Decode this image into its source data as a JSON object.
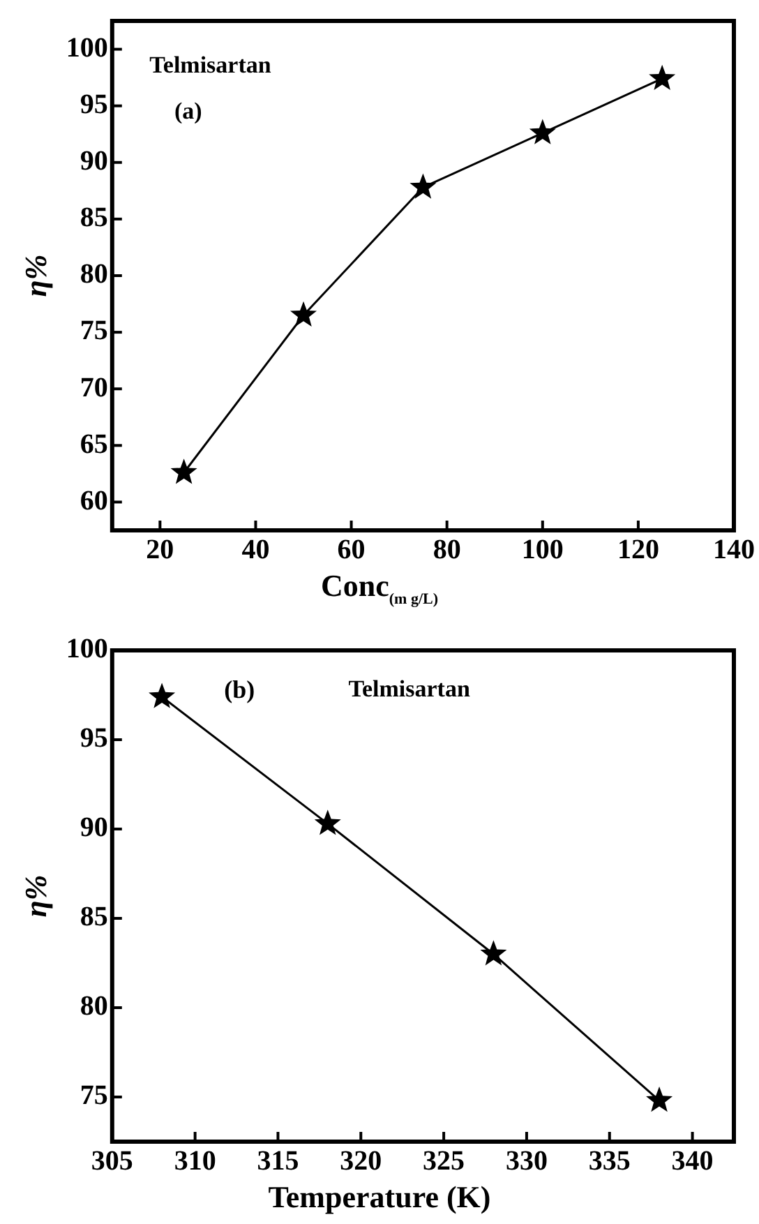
{
  "chart_data": [
    {
      "type": "line",
      "xlabel": "Conc$_{(m g/L)}$",
      "ylabel": "η%",
      "annotations": [
        "Telmisartan",
        "(a)"
      ],
      "x": [
        25,
        50,
        75,
        100,
        125
      ],
      "series": [
        {
          "color": "#000000",
          "values": [
            62.6,
            76.5,
            87.8,
            92.6,
            97.4
          ]
        }
      ],
      "xlim": [
        10,
        140
      ],
      "xticks": [
        20,
        40,
        60,
        80,
        100,
        120,
        140
      ],
      "ylim": [
        57.5,
        102.5
      ],
      "yticks": [
        60,
        65,
        70,
        75,
        80,
        85,
        90,
        95,
        100
      ],
      "marker": "star",
      "line_style": "solid",
      "grid": false,
      "legend": false
    },
    {
      "type": "line",
      "xlabel": "Temperature (K)",
      "ylabel": "η%",
      "annotations": [
        "(b)",
        "Telmisartan"
      ],
      "x": [
        308,
        318,
        328,
        338
      ],
      "series": [
        {
          "color": "#000000",
          "values": [
            97.4,
            90.3,
            83.0,
            74.8
          ]
        }
      ],
      "xlim": [
        305,
        342.5
      ],
      "xticks": [
        305,
        310,
        315,
        320,
        325,
        330,
        335,
        340
      ],
      "ylim": [
        72.5,
        100
      ],
      "yticks": [
        75,
        80,
        85,
        90,
        95,
        100
      ],
      "marker": "star",
      "line_style": "solid",
      "grid": false,
      "legend": false
    }
  ]
}
